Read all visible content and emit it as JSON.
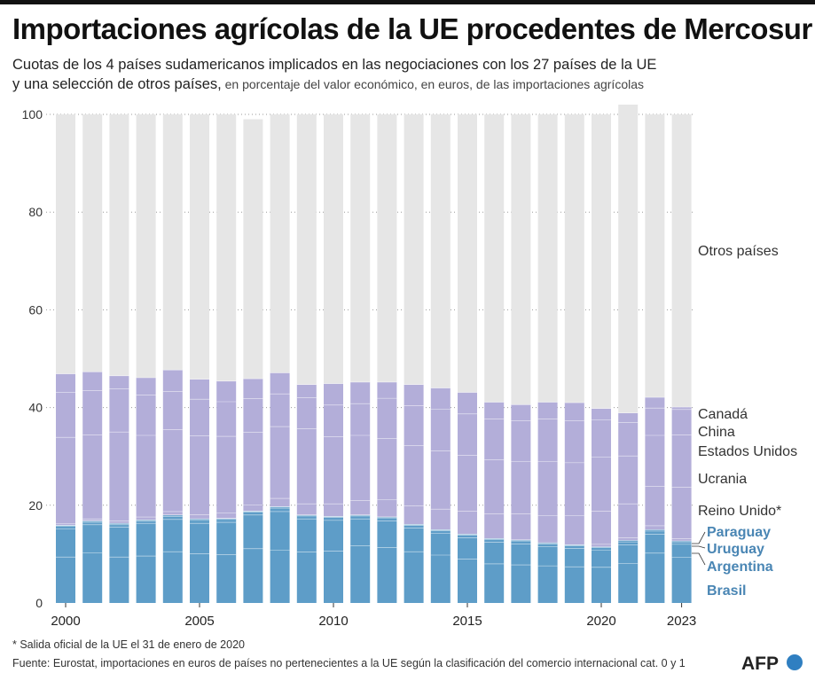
{
  "header": {
    "title": "Importaciones agrícolas de la UE procedentes de Mercosur",
    "subtitle_line1": "Cuotas de los 4 países sudamericanos implicados en las negociaciones con los 27 países de la UE",
    "subtitle_line2": "y una selección de otros países,",
    "subtitle_small": " en porcentaje del valor económico, en euros, de las importaciones agrícolas"
  },
  "footer": {
    "footnote": "* Salida oficial de la UE el 31 de enero de 2020",
    "source": "Fuente: Eurostat, importaciones en euros de países no pertenecientes a la UE según la clasificación del comercio internacional cat. 0 y 1",
    "logo_text": "AFP"
  },
  "colors": {
    "mercosur": "#5e9dc8",
    "mercosur_label": "#4a86b4",
    "others_selected": "#b3aed9",
    "rest": "#e6e6e6",
    "separator": "#ffffff"
  },
  "chart_data": {
    "type": "bar",
    "stacked": true,
    "ylim": [
      0,
      100
    ],
    "yticks": [
      "0",
      "20",
      "40",
      "60",
      "80",
      "100"
    ],
    "ytick_values": [
      0,
      20,
      40,
      60,
      80,
      100
    ],
    "xtick_labels": [
      "2000",
      "2005",
      "2010",
      "2015",
      "2020",
      "2023"
    ],
    "xtick_years": [
      2000,
      2005,
      2010,
      2015,
      2020,
      2023
    ],
    "grid": "horizontal-dotted",
    "categories": [
      2000,
      2001,
      2002,
      2003,
      2004,
      2005,
      2006,
      2007,
      2008,
      2009,
      2010,
      2011,
      2012,
      2013,
      2014,
      2015,
      2016,
      2017,
      2018,
      2019,
      2020,
      2021,
      2022,
      2023
    ],
    "series": [
      {
        "name": "Brasil",
        "group": "mercosur",
        "values": [
          9.4,
          10.3,
          9.4,
          9.6,
          10.5,
          10.1,
          9.9,
          11.1,
          10.8,
          10.4,
          10.6,
          11.7,
          11.3,
          10.5,
          9.8,
          9.0,
          8.0,
          7.8,
          7.6,
          7.4,
          7.3,
          8.1,
          10.2,
          9.3
        ]
      },
      {
        "name": "Argentina",
        "group": "mercosur",
        "values": [
          5.8,
          5.7,
          6.1,
          6.6,
          6.6,
          6.2,
          6.6,
          6.9,
          7.9,
          6.8,
          6.3,
          5.5,
          5.5,
          4.8,
          4.4,
          4.3,
          4.4,
          4.3,
          3.9,
          3.8,
          3.5,
          3.8,
          3.9,
          2.7
        ]
      },
      {
        "name": "Uruguay",
        "group": "mercosur",
        "values": [
          0.5,
          0.5,
          0.5,
          0.5,
          0.6,
          0.6,
          0.6,
          0.6,
          0.7,
          0.6,
          0.6,
          0.6,
          0.6,
          0.6,
          0.6,
          0.6,
          0.6,
          0.6,
          0.6,
          0.5,
          0.5,
          0.6,
          0.6,
          0.5
        ]
      },
      {
        "name": "Paraguay",
        "group": "mercosur",
        "values": [
          0.2,
          0.3,
          0.3,
          0.3,
          0.3,
          0.3,
          0.2,
          0.2,
          0.3,
          0.2,
          0.2,
          0.2,
          0.2,
          0.2,
          0.2,
          0.2,
          0.2,
          0.2,
          0.2,
          0.2,
          0.2,
          0.3,
          0.3,
          0.2
        ]
      },
      {
        "name": "Reino Unido*",
        "group": "others",
        "values": [
          0,
          0,
          0,
          0,
          0,
          0,
          0,
          0,
          0,
          0,
          0,
          0,
          0,
          0,
          0,
          0,
          0,
          0,
          0,
          0,
          0.5,
          0.5,
          0.8,
          0.5
        ]
      },
      {
        "name": "Ucrania",
        "group": "others",
        "values": [
          0.3,
          0.4,
          0.5,
          0.6,
          0.7,
          0.9,
          1.1,
          1.3,
          1.7,
          2.3,
          2.6,
          3.0,
          3.5,
          3.8,
          4.2,
          4.7,
          5.0,
          5.3,
          5.6,
          6.0,
          6.8,
          7.0,
          8.1,
          10.5
        ]
      },
      {
        "name": "Estados Unidos",
        "group": "others",
        "values": [
          17.7,
          17.2,
          18.2,
          16.7,
          16.8,
          16.1,
          15.7,
          14.8,
          14.7,
          15.4,
          13.7,
          13.3,
          12.6,
          12.3,
          11.9,
          11.4,
          11.1,
          10.7,
          11.0,
          10.8,
          11.1,
          9.8,
          10.4,
          10.7
        ]
      },
      {
        "name": "China",
        "group": "others",
        "values": [
          9.2,
          9.1,
          8.8,
          8.3,
          7.8,
          7.5,
          7.1,
          6.9,
          6.7,
          6.3,
          6.5,
          6.5,
          8.2,
          8.2,
          8.6,
          8.5,
          8.4,
          8.4,
          8.8,
          8.6,
          7.6,
          6.8,
          5.6,
          5.2
        ]
      },
      {
        "name": "Canadá",
        "group": "others",
        "values": [
          3.8,
          3.8,
          2.7,
          3.5,
          4.4,
          4.1,
          4.2,
          4.1,
          4.3,
          2.7,
          4.4,
          4.4,
          3.3,
          4.3,
          4.3,
          4.4,
          3.4,
          3.3,
          3.4,
          3.7,
          2.3,
          2.0,
          2.2,
          0.5
        ]
      },
      {
        "name": "Otros países",
        "group": "rest",
        "values": [
          53.1,
          52.7,
          53.5,
          53.9,
          52.3,
          54.2,
          54.6,
          53.1,
          52.9,
          55.3,
          55.1,
          54.8,
          54.8,
          55.3,
          56.0,
          56.9,
          58.9,
          59.4,
          58.9,
          59.0,
          60.2,
          63.1,
          57.9,
          59.9
        ]
      }
    ],
    "legend_labels": {
      "otros": "Otros países",
      "canada": "Canadá",
      "china": "China",
      "eeuu": "Estados Unidos",
      "ucrania": "Ucrania",
      "reino_unido": "Reino Unido*",
      "paraguay": "Paraguay",
      "uruguay": "Uruguay",
      "argentina": "Argentina",
      "brasil": "Brasil"
    }
  }
}
